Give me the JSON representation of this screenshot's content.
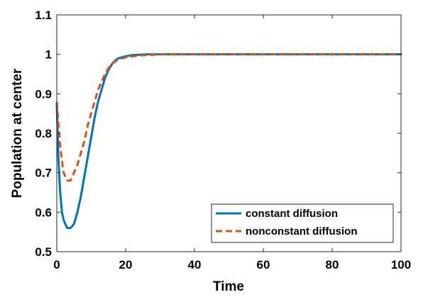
{
  "chart_data": {
    "type": "line",
    "xlabel": "Time",
    "ylabel": "Population at center",
    "xlim": [
      0,
      100
    ],
    "ylim": [
      0.5,
      1.1
    ],
    "xticks": [
      0,
      20,
      40,
      60,
      80,
      100
    ],
    "yticks": [
      0.5,
      0.6,
      0.7,
      0.8,
      0.9,
      1,
      1.1
    ],
    "xtick_labels": [
      "0",
      "20",
      "40",
      "60",
      "80",
      "100"
    ],
    "ytick_labels": [
      "0.5",
      "0.6",
      "0.7",
      "0.8",
      "0.9",
      "1",
      "1.1"
    ],
    "grid": false,
    "legend_position": "bottom-right",
    "series": [
      {
        "name": "constant diffusion",
        "color": "#0072BD",
        "line_style": "solid",
        "x": [
          0,
          0.5,
          1,
          1.5,
          2,
          3,
          4,
          5,
          6,
          7,
          8,
          9,
          10,
          11,
          12,
          13,
          14,
          15,
          16,
          17,
          18,
          19,
          20,
          22,
          24,
          26,
          28,
          30,
          40,
          50,
          60,
          70,
          80,
          90,
          100
        ],
        "y": [
          0.87,
          0.73,
          0.65,
          0.6,
          0.58,
          0.56,
          0.56,
          0.57,
          0.6,
          0.64,
          0.69,
          0.74,
          0.79,
          0.84,
          0.88,
          0.91,
          0.94,
          0.96,
          0.975,
          0.985,
          0.99,
          0.993,
          0.995,
          0.998,
          0.999,
          1,
          1,
          1,
          1,
          1,
          1,
          1,
          1,
          1,
          1
        ]
      },
      {
        "name": "nonconstant diffusion",
        "color": "#D95319",
        "line_style": "dashed",
        "x": [
          0,
          0.5,
          1,
          1.5,
          2,
          3,
          4,
          5,
          6,
          7,
          8,
          9,
          10,
          11,
          12,
          13,
          14,
          15,
          16,
          17,
          18,
          19,
          20,
          22,
          24,
          26,
          28,
          30,
          40,
          50,
          60,
          70,
          80,
          90,
          100
        ],
        "y": [
          0.88,
          0.82,
          0.77,
          0.73,
          0.7,
          0.68,
          0.68,
          0.7,
          0.72,
          0.75,
          0.78,
          0.82,
          0.85,
          0.88,
          0.91,
          0.93,
          0.95,
          0.965,
          0.975,
          0.982,
          0.987,
          0.99,
          0.992,
          0.995,
          0.997,
          0.998,
          0.999,
          1,
          1,
          1,
          1,
          1,
          1,
          1,
          1
        ]
      }
    ]
  }
}
